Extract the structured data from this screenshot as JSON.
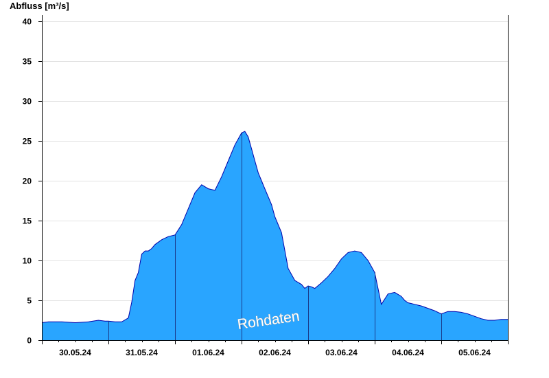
{
  "chart_data": {
    "type": "area",
    "ylabel": "Abfluss [m³/s]",
    "xlabel": "",
    "title": "",
    "ylim": [
      0,
      40
    ],
    "yticks": [
      0,
      5,
      10,
      15,
      20,
      25,
      30,
      35,
      40
    ],
    "xlim": [
      0,
      7
    ],
    "day_boundaries": [
      1,
      2,
      3,
      4,
      5,
      6
    ],
    "categories": [
      "30.05.24",
      "31.05.24",
      "01.06.24",
      "02.06.24",
      "03.06.24",
      "04.06.24",
      "05.06.24"
    ],
    "watermark": "Rohdaten",
    "grid": true,
    "colors": {
      "fill": "#29a5ff",
      "line": "#0000aa",
      "grid": "#e3e3e3",
      "divider": "#1a3a8a"
    },
    "series": [
      {
        "x": [
          0,
          0.1,
          0.3,
          0.5,
          0.7,
          0.85,
          0.95,
          1.0,
          1.1,
          1.2,
          1.3,
          1.35,
          1.4,
          1.45,
          1.5,
          1.55,
          1.6,
          1.65,
          1.7,
          1.8,
          1.9,
          2.0,
          2.1,
          2.2,
          2.3,
          2.4,
          2.5,
          2.6,
          2.7,
          2.8,
          2.9,
          3.0,
          3.05,
          3.1,
          3.15,
          3.2,
          3.25,
          3.3,
          3.35,
          3.4,
          3.45,
          3.5,
          3.6,
          3.7,
          3.8,
          3.9,
          3.95,
          4.0,
          4.05,
          4.1,
          4.2,
          4.3,
          4.4,
          4.5,
          4.6,
          4.7,
          4.8,
          4.9,
          5.0,
          5.1,
          5.2,
          5.3,
          5.4,
          5.45,
          5.5,
          5.55,
          5.6,
          5.7,
          5.8,
          5.9,
          6.0,
          6.1,
          6.2,
          6.3,
          6.4,
          6.5,
          6.6,
          6.7,
          6.8,
          6.9,
          7.0
        ],
        "values": [
          2.2,
          2.3,
          2.3,
          2.2,
          2.3,
          2.5,
          2.4,
          2.4,
          2.3,
          2.3,
          2.8,
          4.8,
          7.5,
          8.5,
          10.8,
          11.2,
          11.2,
          11.5,
          12.0,
          12.6,
          13.0,
          13.2,
          14.5,
          16.5,
          18.5,
          19.5,
          19.0,
          18.8,
          20.5,
          22.5,
          24.5,
          26.0,
          26.2,
          25.5,
          24.0,
          22.5,
          21.0,
          20.0,
          19.0,
          18.0,
          17.0,
          15.5,
          13.5,
          9.0,
          7.5,
          7.0,
          6.5,
          6.8,
          6.7,
          6.5,
          7.2,
          8.0,
          9.0,
          10.2,
          11.0,
          11.2,
          11.0,
          10.0,
          8.5,
          4.5,
          5.8,
          6.0,
          5.5,
          5.0,
          4.7,
          4.6,
          4.5,
          4.3,
          4.0,
          3.7,
          3.3,
          3.6,
          3.6,
          3.5,
          3.3,
          3.0,
          2.7,
          2.5,
          2.5,
          2.6,
          2.6
        ]
      }
    ]
  }
}
